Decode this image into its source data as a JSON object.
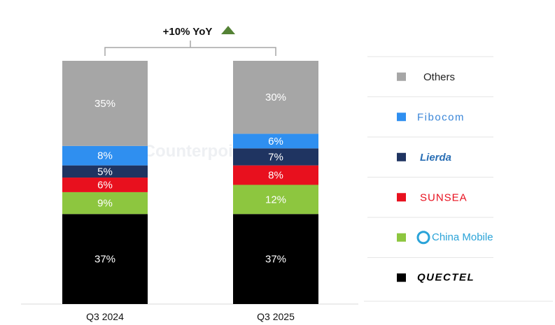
{
  "chart_data": {
    "type": "bar",
    "stacked": true,
    "percent_stacked": true,
    "categories": [
      "Q3 2024",
      "Q3 2025"
    ],
    "series": [
      {
        "name": "QUECTEL",
        "color": "#000000",
        "values": [
          37,
          37
        ]
      },
      {
        "name": "China Mobile",
        "color": "#8dc63f",
        "values": [
          9,
          12
        ]
      },
      {
        "name": "SUNSEA",
        "color": "#e8101e",
        "values": [
          6,
          8
        ]
      },
      {
        "name": "Lierda",
        "color": "#1f3461",
        "values": [
          5,
          7
        ]
      },
      {
        "name": "Fibocom",
        "color": "#2f8ff0",
        "values": [
          8,
          6
        ]
      },
      {
        "name": "Others",
        "color": "#a6a6a6",
        "values": [
          35,
          30
        ]
      }
    ],
    "data_label_format": "{v}%",
    "annotation": {
      "text": "+10% YoY",
      "icon": "up-triangle-icon",
      "color": "#548235"
    },
    "legend_placement": "right",
    "grid": false,
    "watermark": "Counterpoint"
  }
}
